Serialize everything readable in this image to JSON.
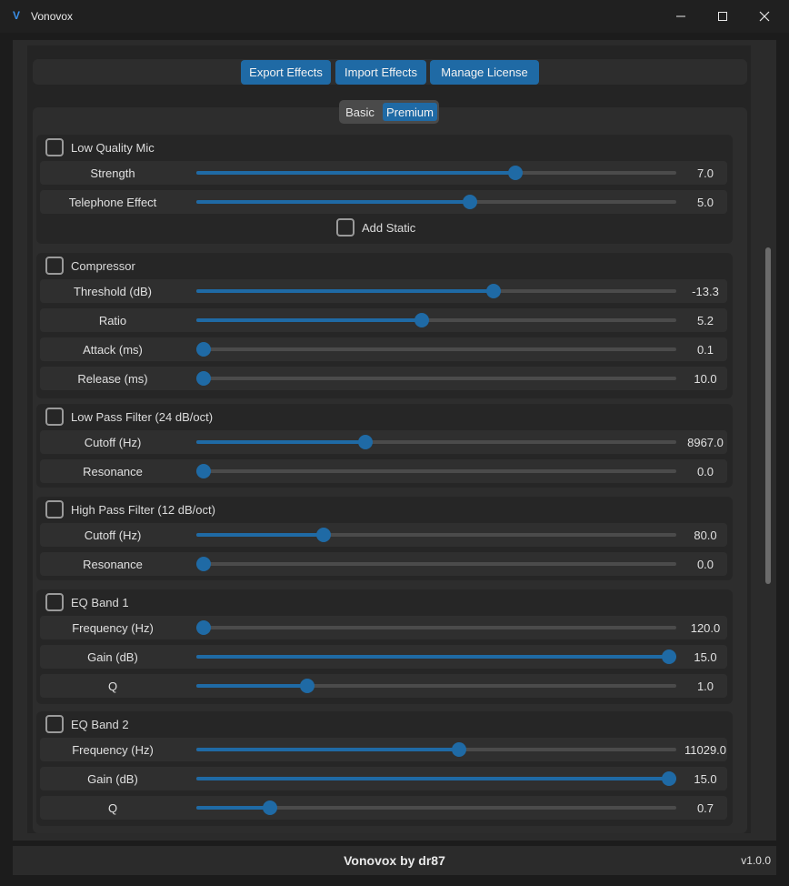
{
  "window": {
    "title": "Vonovox",
    "icon": "V"
  },
  "toolbar": {
    "export_label": "Export Effects",
    "import_label": "Import Effects",
    "license_label": "Manage License"
  },
  "tabs": {
    "basic": "Basic",
    "premium": "Premium",
    "selected": "Premium"
  },
  "groups": [
    {
      "title": "Low Quality Mic",
      "checked": false,
      "sliders": [
        {
          "label": "Strength",
          "value": "7.0",
          "fraction": 0.665
        },
        {
          "label": "Telephone Effect",
          "value": "5.0",
          "fraction": 0.57
        }
      ],
      "sub_option": {
        "label": "Add Static",
        "checked": false
      }
    },
    {
      "title": "Compressor",
      "checked": false,
      "sliders": [
        {
          "label": "Threshold (dB)",
          "value": "-13.3",
          "fraction": 0.62
        },
        {
          "label": "Ratio",
          "value": "5.2",
          "fraction": 0.47
        },
        {
          "label": "Attack (ms)",
          "value": "0.1",
          "fraction": 0.0
        },
        {
          "label": "Release (ms)",
          "value": "10.0",
          "fraction": 0.0
        }
      ]
    },
    {
      "title": "Low Pass Filter (24 dB/oct)",
      "checked": false,
      "sliders": [
        {
          "label": "Cutoff (Hz)",
          "value": "8967.0",
          "fraction": 0.352
        },
        {
          "label": "Resonance",
          "value": "0.0",
          "fraction": 0.0
        }
      ]
    },
    {
      "title": "High Pass Filter (12 dB/oct)",
      "checked": false,
      "sliders": [
        {
          "label": "Cutoff (Hz)",
          "value": "80.0",
          "fraction": 0.265
        },
        {
          "label": "Resonance",
          "value": "0.0",
          "fraction": 0.0
        }
      ]
    },
    {
      "title": "EQ Band 1",
      "checked": false,
      "sliders": [
        {
          "label": "Frequency (Hz)",
          "value": "120.0",
          "fraction": 0.007
        },
        {
          "label": "Gain (dB)",
          "value": "15.0",
          "fraction": 1.0
        },
        {
          "label": "Q",
          "value": "1.0",
          "fraction": 0.232
        }
      ]
    },
    {
      "title": "EQ Band 2",
      "checked": false,
      "sliders": [
        {
          "label": "Frequency (Hz)",
          "value": "11029.0",
          "fraction": 0.548
        },
        {
          "label": "Gain (dB)",
          "value": "15.0",
          "fraction": 1.0
        },
        {
          "label": "Q",
          "value": "0.7",
          "fraction": 0.153
        }
      ]
    }
  ],
  "footer": {
    "title": "Vonovox by dr87",
    "version": "v1.0.0"
  },
  "colors": {
    "accent": "#1f6aa5",
    "track": "#4b4b4b",
    "background": "#242424"
  }
}
